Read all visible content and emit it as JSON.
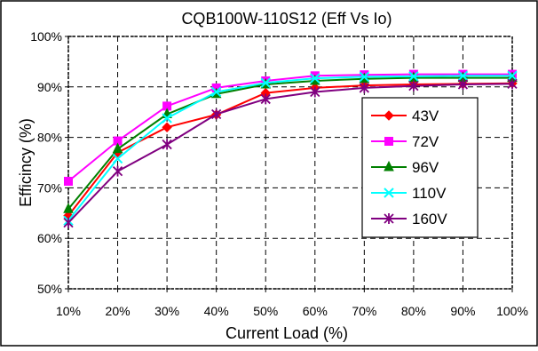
{
  "chart_data": {
    "type": "line",
    "title": "CQB100W-110S12  (Eff Vs Io)",
    "xlabel": "Current Load (%)",
    "ylabel": "Efficincy (%)",
    "categories": [
      "10%",
      "20%",
      "30%",
      "40%",
      "50%",
      "60%",
      "70%",
      "80%",
      "90%",
      "100%"
    ],
    "x": [
      10,
      20,
      30,
      40,
      50,
      60,
      70,
      80,
      90,
      100
    ],
    "xlim": [
      10,
      100
    ],
    "ylim": [
      50,
      100
    ],
    "y_ticks": [
      {
        "value": 50,
        "label": "50%"
      },
      {
        "value": 60,
        "label": "60%"
      },
      {
        "value": 70,
        "label": "70%"
      },
      {
        "value": 80,
        "label": "80%"
      },
      {
        "value": 90,
        "label": "90%"
      },
      {
        "value": 100,
        "label": "100%"
      }
    ],
    "grid": true,
    "legend_position": "right",
    "series": [
      {
        "name": "43V",
        "color": "#ff0000",
        "marker": "diamond",
        "values": [
          64.5,
          77.0,
          82.0,
          84.5,
          88.8,
          89.8,
          90.3,
          90.5,
          90.6,
          90.7
        ]
      },
      {
        "name": "72V",
        "color": "#ff00ff",
        "marker": "square",
        "values": [
          71.3,
          79.3,
          86.2,
          89.8,
          91.2,
          92.2,
          92.4,
          92.5,
          92.5,
          92.5
        ]
      },
      {
        "name": "96V",
        "color": "#008000",
        "marker": "triangle",
        "values": [
          65.8,
          77.7,
          84.6,
          88.6,
          90.5,
          91.2,
          91.6,
          91.8,
          91.8,
          91.8
        ]
      },
      {
        "name": "110V",
        "color": "#00ffff",
        "marker": "x",
        "values": [
          63.5,
          75.8,
          83.8,
          89.0,
          90.8,
          91.7,
          92.0,
          92.1,
          92.2,
          92.2
        ]
      },
      {
        "name": "160V",
        "color": "#800080",
        "marker": "star",
        "values": [
          63.1,
          73.3,
          78.6,
          84.6,
          87.6,
          89.0,
          89.8,
          90.2,
          90.5,
          90.6
        ]
      }
    ]
  }
}
